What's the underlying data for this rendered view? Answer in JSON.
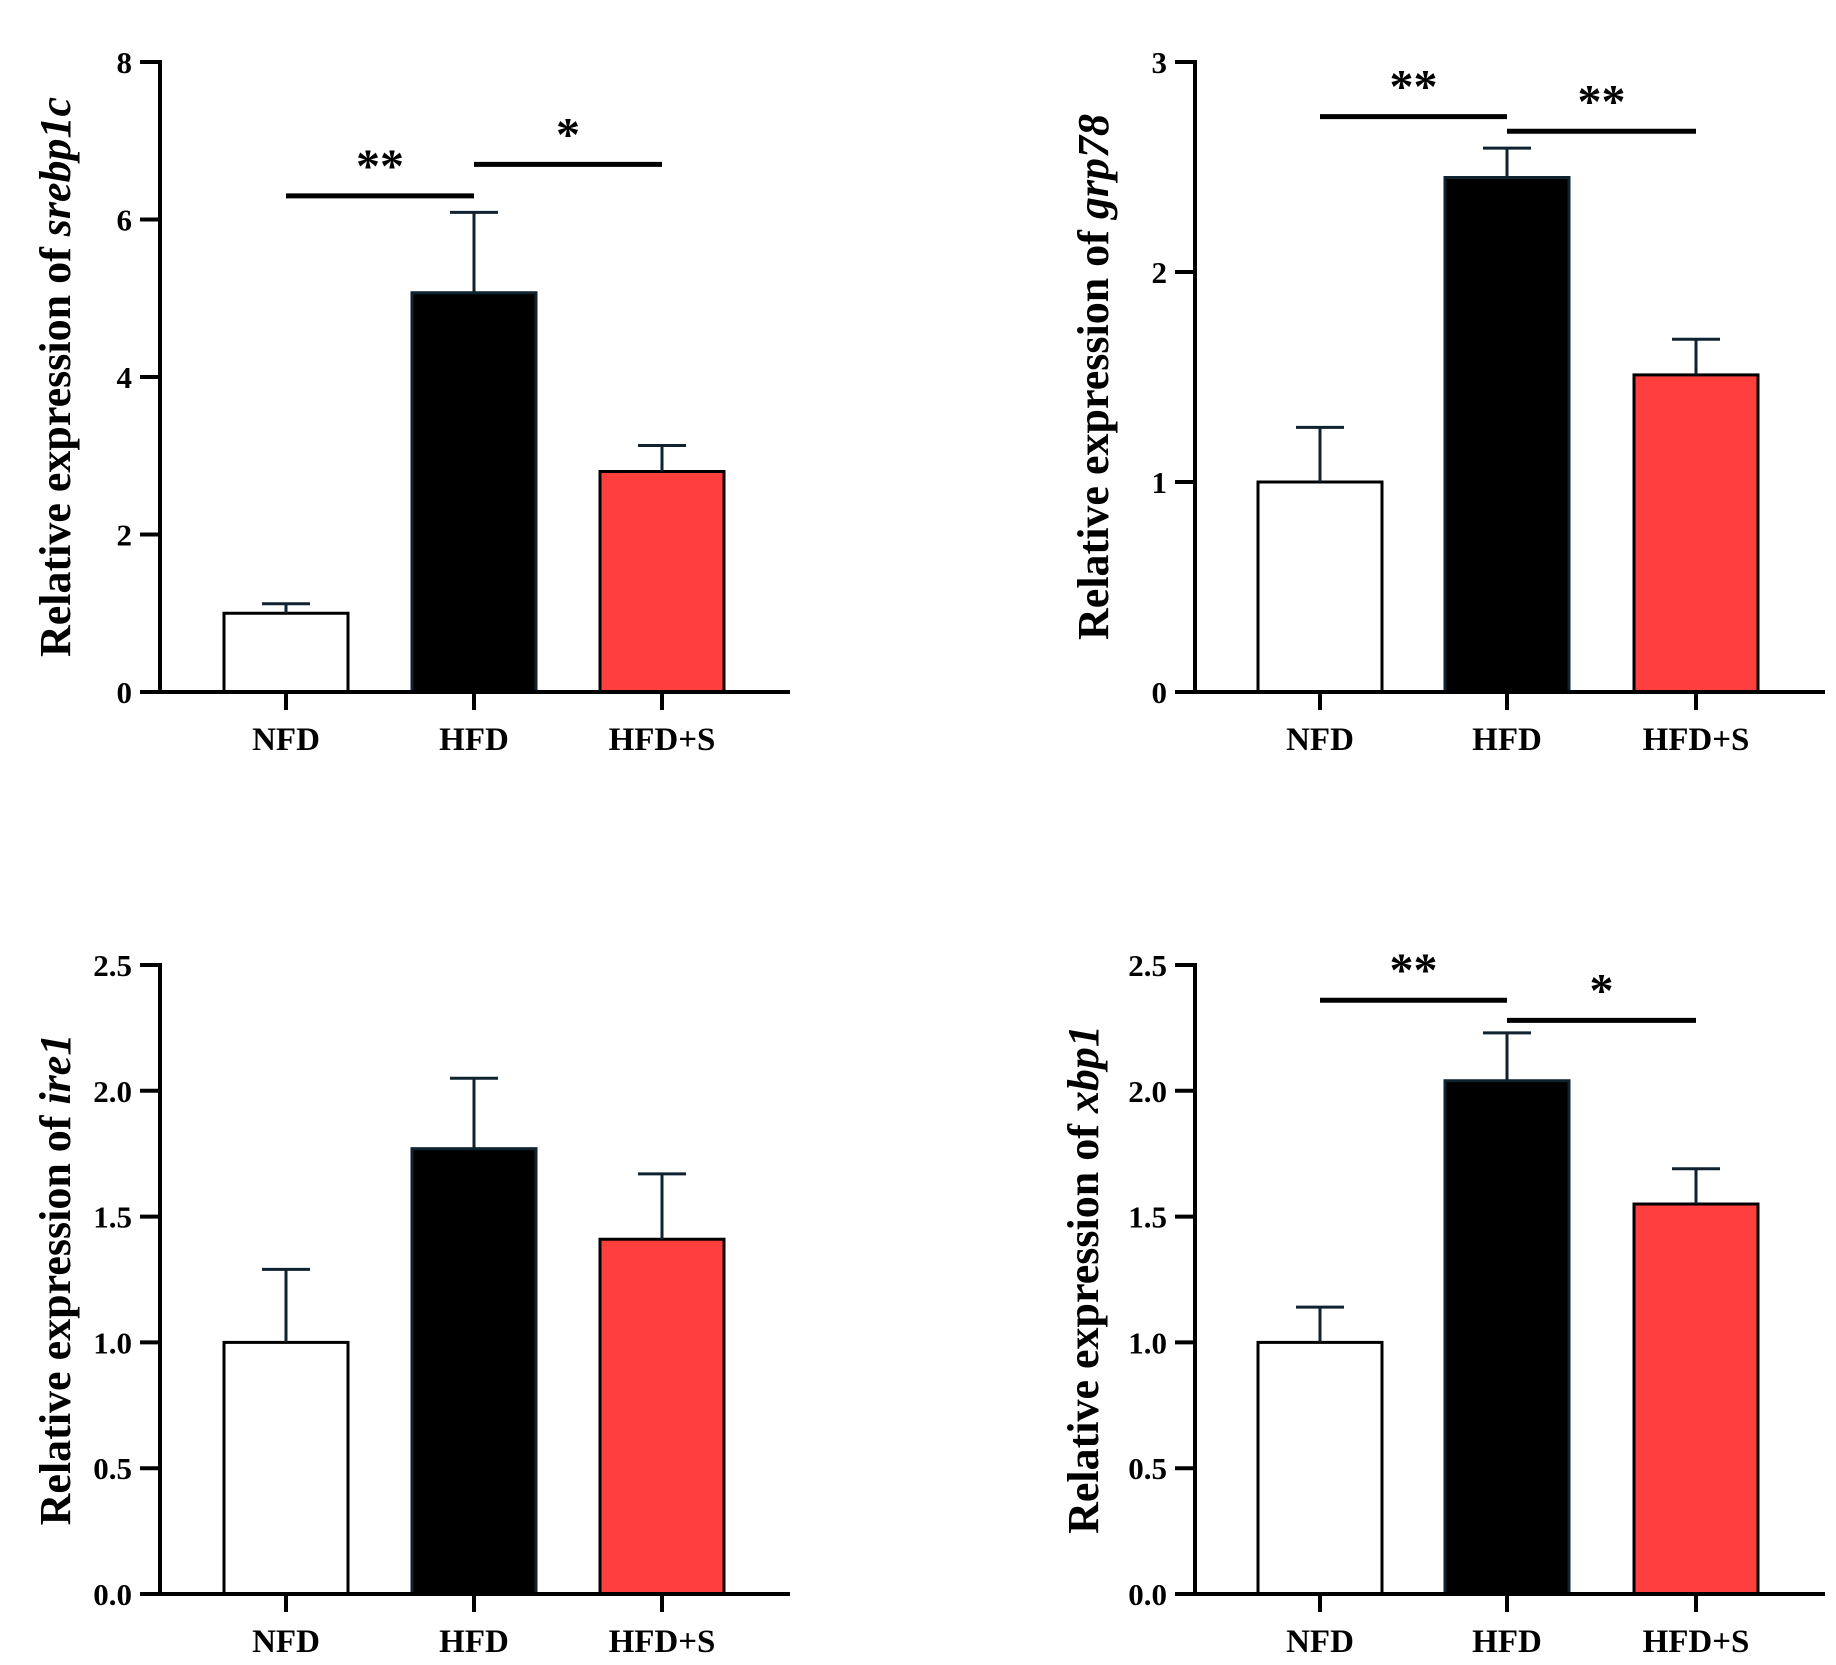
{
  "colors": {
    "NFD": "#ffffff",
    "HFD": "#000000",
    "HFD+S": "#ff3e3e",
    "axis": "#000000",
    "error_bar": "#0f2230"
  },
  "chart_data": [
    {
      "id": "srebp1c",
      "type": "bar",
      "ylabel_prefix": "Relative expression of ",
      "ylabel_gene": "srebp1c",
      "categories": [
        "NFD",
        "HFD",
        "HFD+S"
      ],
      "values": [
        1.0,
        5.07,
        2.8
      ],
      "errors": [
        0.12,
        1.02,
        0.33
      ],
      "ylim": [
        0,
        8
      ],
      "yticks": [
        0,
        2,
        4,
        6,
        8
      ],
      "tick_labels": [
        "0",
        "2",
        "4",
        "6",
        "8"
      ],
      "significance": [
        {
          "from": 0,
          "to": 1,
          "label": "**",
          "y": 6.3
        },
        {
          "from": 1,
          "to": 2,
          "label": "*",
          "y": 6.7
        }
      ]
    },
    {
      "id": "grp78",
      "type": "bar",
      "ylabel_prefix": "Relative expression of ",
      "ylabel_gene": "grp78",
      "categories": [
        "NFD",
        "HFD",
        "HFD+S"
      ],
      "values": [
        1.0,
        2.45,
        1.51
      ],
      "errors": [
        0.26,
        0.14,
        0.17
      ],
      "ylim": [
        0,
        3
      ],
      "yticks": [
        0,
        1,
        2,
        3
      ],
      "tick_labels": [
        "0",
        "1",
        "2",
        "3"
      ],
      "significance": [
        {
          "from": 0,
          "to": 1,
          "label": "**",
          "y": 2.74
        },
        {
          "from": 1,
          "to": 2,
          "label": "**",
          "y": 2.67
        }
      ]
    },
    {
      "id": "ire1",
      "type": "bar",
      "ylabel_prefix": "Relative expression of ",
      "ylabel_gene": "ire1",
      "categories": [
        "NFD",
        "HFD",
        "HFD+S"
      ],
      "values": [
        1.0,
        1.77,
        1.41
      ],
      "errors": [
        0.29,
        0.28,
        0.26
      ],
      "ylim": [
        0,
        2.5
      ],
      "yticks": [
        0,
        0.5,
        1.0,
        1.5,
        2.0,
        2.5
      ],
      "tick_labels": [
        "0.0",
        "0.5",
        "1.0",
        "1.5",
        "2.0",
        "2.5"
      ],
      "significance": []
    },
    {
      "id": "xbp1",
      "type": "bar",
      "ylabel_prefix": "Relative expression of ",
      "ylabel_gene": "xbp1",
      "categories": [
        "NFD",
        "HFD",
        "HFD+S"
      ],
      "values": [
        1.0,
        2.04,
        1.55
      ],
      "errors": [
        0.14,
        0.19,
        0.14
      ],
      "ylim": [
        0,
        2.5
      ],
      "yticks": [
        0,
        0.5,
        1.0,
        1.5,
        2.0,
        2.5
      ],
      "tick_labels": [
        "0.0",
        "0.5",
        "1.0",
        "1.5",
        "2.0",
        "2.5"
      ],
      "significance": [
        {
          "from": 0,
          "to": 1,
          "label": "**",
          "y": 2.36
        },
        {
          "from": 1,
          "to": 2,
          "label": "*",
          "y": 2.28
        }
      ]
    }
  ]
}
